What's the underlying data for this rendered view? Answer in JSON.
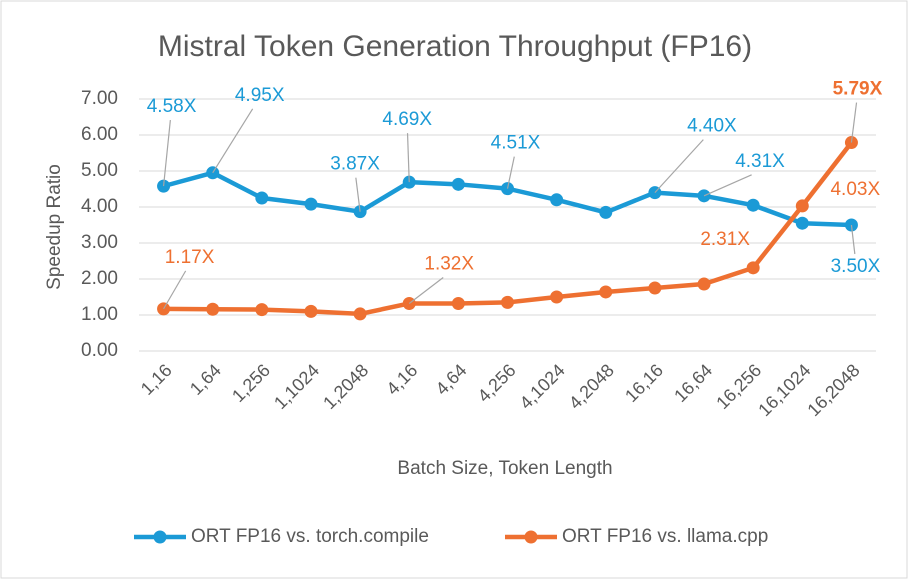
{
  "chart_data": {
    "type": "line",
    "title": "Mistral Token Generation Throughput (FP16)",
    "x_label": "Batch Size, Token Length",
    "y_label": "Speedup Ratio",
    "categories": [
      "1,16",
      "1,64",
      "1,256",
      "1,1024",
      "1,2048",
      "4,16",
      "4,64",
      "4,256",
      "4,1024",
      "4,2048",
      "16,16",
      "16,64",
      "16,256",
      "16,1024",
      "16,2048"
    ],
    "series": [
      {
        "name": "ORT FP16 vs. torch.compile",
        "color": "#1b9ad6",
        "values": [
          4.58,
          4.95,
          4.25,
          4.08,
          3.87,
          4.69,
          4.63,
          4.51,
          4.2,
          3.85,
          4.4,
          4.31,
          4.05,
          3.55,
          3.5
        ],
        "value_labels": [
          "4.58X",
          "4.95X",
          null,
          null,
          "3.87X",
          "4.69X",
          null,
          "4.51X",
          null,
          null,
          "4.40X",
          "4.31X",
          null,
          null,
          "3.50X"
        ]
      },
      {
        "name": "ORT FP16 vs. llama.cpp",
        "color": "#ee7031",
        "values": [
          1.17,
          1.16,
          1.15,
          1.1,
          1.03,
          1.32,
          1.32,
          1.35,
          1.5,
          1.64,
          1.75,
          1.86,
          2.31,
          4.03,
          5.79
        ],
        "value_labels": [
          "1.17X",
          null,
          null,
          null,
          null,
          "1.32X",
          null,
          null,
          null,
          null,
          null,
          null,
          "2.31X",
          "4.03X",
          "5.79X"
        ]
      }
    ],
    "ylim": [
      0,
      7
    ],
    "yticks": [
      {
        "value": 0,
        "label": "0.00"
      },
      {
        "value": 1,
        "label": "1.00"
      },
      {
        "value": 2,
        "label": "2.00"
      },
      {
        "value": 3,
        "label": "3.00"
      },
      {
        "value": 4,
        "label": "4.00"
      },
      {
        "value": 5,
        "label": "5.00"
      },
      {
        "value": 6,
        "label": "6.00"
      },
      {
        "value": 7,
        "label": "7.00"
      }
    ],
    "grid": true,
    "legend": "bottom"
  }
}
